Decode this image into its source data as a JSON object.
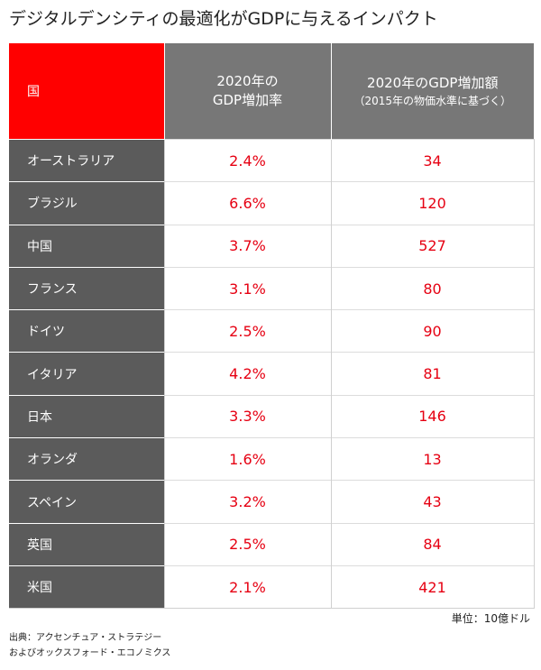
{
  "title": "デジタルデンシティの最適化がGDPに与えるインパクト",
  "header": {
    "country": "国",
    "rate_line1": "2020年の",
    "rate_line2": "GDP増加率",
    "amount_line1": "2020年のGDP増加額",
    "amount_line2": "（2015年の物価水準に基づく）"
  },
  "unit_note": "単位：10億ドル",
  "source_line1": "出典：アクセンチュア・ストラテジー",
  "source_line2": "およびオックスフォード・エコノミクス",
  "colors": {
    "header_accent": "#ff0000",
    "header_gray": "#777777",
    "country_cell": "#5b5b5b",
    "value_red": "#e60012"
  },
  "chart_data": {
    "type": "table",
    "title": "デジタルデンシティの最適化がGDPに与えるインパクト",
    "columns": [
      "国",
      "2020年のGDP増加率",
      "2020年のGDP増加額（2015年の物価水準に基づく）"
    ],
    "rows": [
      {
        "country": "オーストラリア",
        "rate": "2.4%",
        "amount": "34"
      },
      {
        "country": "ブラジル",
        "rate": "6.6%",
        "amount": "120"
      },
      {
        "country": "中国",
        "rate": "3.7%",
        "amount": "527"
      },
      {
        "country": "フランス",
        "rate": "3.1%",
        "amount": "80"
      },
      {
        "country": "ドイツ",
        "rate": "2.5%",
        "amount": "90"
      },
      {
        "country": "イタリア",
        "rate": "4.2%",
        "amount": "81"
      },
      {
        "country": "日本",
        "rate": "3.3%",
        "amount": "146"
      },
      {
        "country": "オランダ",
        "rate": "1.6%",
        "amount": "13"
      },
      {
        "country": "スペイン",
        "rate": "3.2%",
        "amount": "43"
      },
      {
        "country": "英国",
        "rate": "2.5%",
        "amount": "84"
      },
      {
        "country": "米国",
        "rate": "2.1%",
        "amount": "421"
      }
    ]
  }
}
